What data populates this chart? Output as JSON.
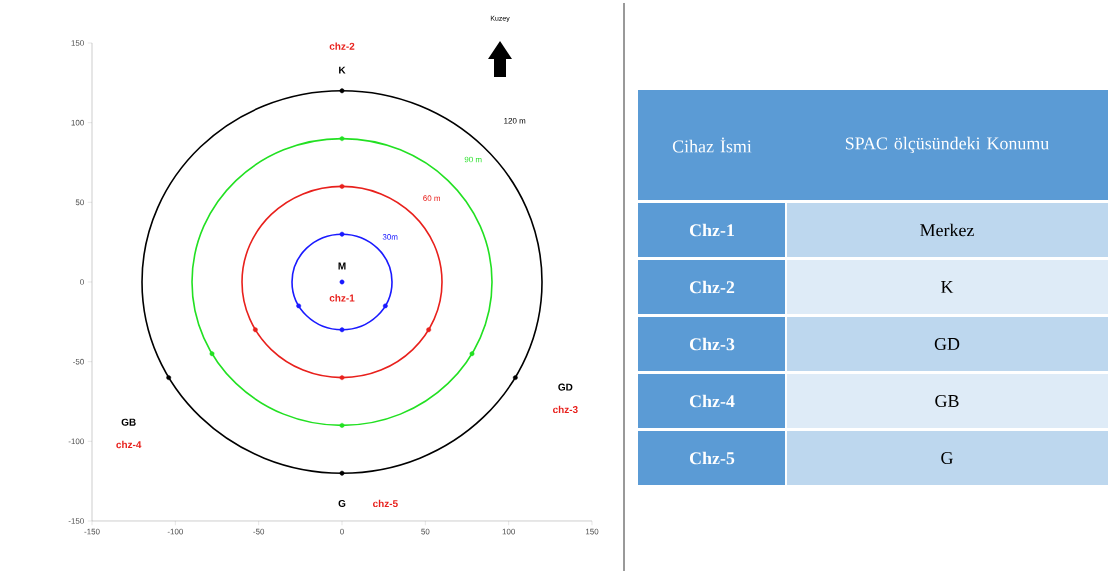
{
  "chart_data": [
    {
      "type": "scatter",
      "marker": "circle",
      "xlim": [
        -150,
        150
      ],
      "ylim": [
        -150,
        150
      ],
      "xticks": [
        -150,
        -100,
        -50,
        0,
        50,
        100,
        150
      ],
      "yticks": [
        -150,
        -100,
        -50,
        0,
        50,
        100,
        150
      ],
      "series": [
        {
          "name": "30m",
          "color": "#1a1aff",
          "x": [
            0,
            0,
            26,
            -26,
            0
          ],
          "values": [
            0,
            30,
            -15,
            -15,
            -30
          ]
        },
        {
          "name": "60 m",
          "color": "#e8201c",
          "x": [
            0,
            52,
            -52,
            0
          ],
          "values": [
            60,
            -30,
            -30,
            -60
          ]
        },
        {
          "name": "90 m",
          "color": "#22e022",
          "x": [
            0,
            78,
            -78,
            0
          ],
          "values": [
            90,
            -45,
            -45,
            -90
          ]
        },
        {
          "name": "120 m",
          "color": "#000000",
          "x": [
            0,
            104,
            -104,
            0
          ],
          "values": [
            120,
            -60,
            -60,
            -120
          ]
        }
      ],
      "annotations": [
        "M",
        "chz-1",
        "K",
        "chz-2",
        "GD",
        "chz-3",
        "GB",
        "chz-4",
        "G",
        "chz-5",
        "Kuzey"
      ]
    },
    {
      "type": "other",
      "annotations": [
        "Cihaz İsmi",
        "SPAC ölçüsündeki Konumu",
        "Chz-1",
        "Merkez",
        "Chz-2",
        "K",
        "Chz-3",
        "GD",
        "Chz-4",
        "GB",
        "Chz-5",
        "G"
      ]
    }
  ]
}
